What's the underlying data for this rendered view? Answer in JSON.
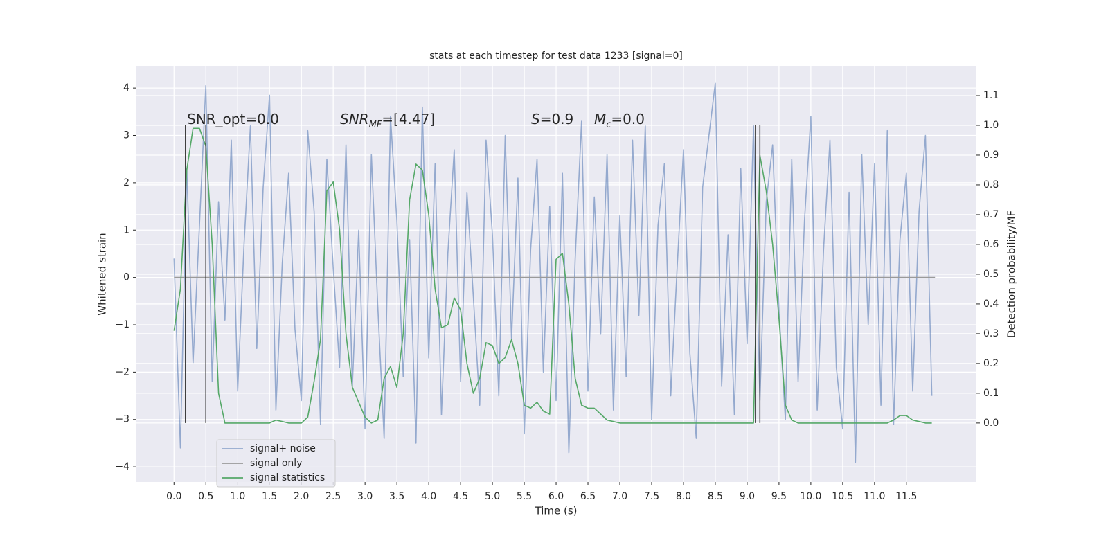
{
  "chart_data": {
    "type": "line",
    "title": "stats at each timestep for test data 1233 [signal=0]",
    "xlabel": "Time (s)",
    "ylabel": "Whitened strain",
    "y2label": "Detection probability/MF",
    "background": "#eaeaf2",
    "grid": true,
    "legend": "lower left",
    "xlim": [
      -0.59,
      12.6
    ],
    "ylim": [
      -4.32,
      4.47
    ],
    "y2lim": [
      -0.198,
      1.2
    ],
    "xticks": [
      {
        "value": 0,
        "label": "0.0"
      },
      0.5,
      {
        "value": 1,
        "label": "1.0"
      },
      1.5,
      {
        "value": 2,
        "label": "2.0"
      },
      2.5,
      {
        "value": 3,
        "label": "3.0"
      },
      3.5,
      {
        "value": 4,
        "label": "4.0"
      },
      4.5,
      {
        "value": 5,
        "label": "5.0"
      },
      5.5,
      {
        "value": 6,
        "label": "6.0"
      },
      6.5,
      {
        "value": 7,
        "label": "7.0"
      },
      7.5,
      {
        "value": 8,
        "label": "8.0"
      },
      8.5,
      {
        "value": 9,
        "label": "9.0"
      },
      9.5,
      {
        "value": 10,
        "label": "10.0"
      },
      10.5,
      {
        "value": 11,
        "label": "11.0"
      },
      11.5
    ],
    "yticks": [
      {
        "value": -4,
        "label": "−4"
      },
      {
        "value": -3,
        "label": "−3"
      },
      {
        "value": -2,
        "label": "−2"
      },
      {
        "value": -1,
        "label": "−1"
      },
      0,
      1,
      2,
      3,
      4
    ],
    "y2ticks": [
      {
        "value": 0,
        "label": "0.0"
      },
      0.1,
      0.2,
      0.3,
      0.4,
      0.5,
      0.6,
      0.7,
      0.8,
      0.9,
      {
        "value": 1,
        "label": "1.0"
      },
      1.1
    ],
    "x": [
      0,
      0.1,
      0.2,
      0.3,
      0.4,
      0.5,
      0.6,
      0.7,
      0.8,
      0.9,
      1,
      1.1,
      1.2,
      1.3,
      1.4,
      1.5,
      1.6,
      1.7,
      1.8,
      1.9,
      2,
      2.1,
      2.2,
      2.3,
      2.4,
      2.5,
      2.6,
      2.7,
      2.8,
      2.9,
      3,
      3.1,
      3.2,
      3.3,
      3.4,
      3.5,
      3.6,
      3.7,
      3.8,
      3.9,
      4,
      4.1,
      4.2,
      4.3,
      4.4,
      4.5,
      4.6,
      4.7,
      4.8,
      4.9,
      5,
      5.1,
      5.2,
      5.3,
      5.4,
      5.5,
      5.6,
      5.7,
      5.8,
      5.9,
      6,
      6.1,
      6.2,
      6.3,
      6.4,
      6.5,
      6.6,
      6.7,
      6.8,
      6.9,
      7,
      7.1,
      7.2,
      7.3,
      7.4,
      7.5,
      7.6,
      7.7,
      7.8,
      7.9,
      8,
      8.1,
      8.2,
      8.3,
      8.4,
      8.5,
      8.6,
      8.7,
      8.8,
      8.9,
      9,
      9.1,
      9.2,
      9.3,
      9.4,
      9.5,
      9.6,
      9.7,
      9.8,
      9.9,
      10,
      10.1,
      10.2,
      10.3,
      10.4,
      10.5,
      10.6,
      10.7,
      10.8,
      10.9,
      11,
      11.1,
      11.2,
      11.3,
      11.4,
      11.5,
      11.6,
      11.7,
      11.8,
      11.9
    ],
    "series": [
      {
        "name": "signal+ noise",
        "color": "#4c72b0",
        "alpha": 0.55,
        "values": [
          0.4,
          -3.6,
          2.3,
          -1.8,
          1.1,
          4.05,
          -2.2,
          1.6,
          -0.9,
          2.9,
          -2.4,
          0.7,
          3.2,
          -1.5,
          1.9,
          3.85,
          -2.8,
          0.3,
          2.2,
          -1.1,
          -2.6,
          3.1,
          1.4,
          -3.1,
          2.5,
          0.2,
          -1.9,
          2.8,
          -2.3,
          1.0,
          -3.2,
          2.6,
          -0.6,
          -3.4,
          3.4,
          1.2,
          -2.1,
          0.8,
          -3.5,
          3.6,
          -1.7,
          2.4,
          -2.9,
          0.5,
          2.7,
          -2.2,
          1.8,
          -0.4,
          -2.7,
          2.9,
          0.9,
          -2.5,
          3.0,
          -1.3,
          2.1,
          -3.3,
          0.6,
          2.5,
          -2.0,
          1.5,
          -2.6,
          2.2,
          -3.7,
          0.4,
          3.3,
          -2.4,
          1.7,
          -1.2,
          2.6,
          -2.8,
          1.3,
          -2.1,
          2.9,
          -0.8,
          3.2,
          -3.0,
          1.1,
          2.4,
          -2.5,
          0.2,
          2.7,
          -1.6,
          -3.4,
          1.9,
          3.0,
          4.1,
          -2.3,
          0.9,
          -2.9,
          2.3,
          -1.4,
          3.2,
          -2.6,
          1.6,
          2.8,
          -0.7,
          -3.0,
          2.5,
          -2.2,
          1.2,
          3.4,
          -2.8,
          0.6,
          2.9,
          -1.9,
          -3.2,
          1.8,
          -3.9,
          2.6,
          -1.0,
          2.4,
          -2.7,
          3.1,
          -3.1,
          0.8,
          2.2,
          -2.4,
          1.4,
          3.0,
          -2.5
        ]
      },
      {
        "name": "signal only",
        "color": "#9a9a9a",
        "alpha": 1,
        "x": [
          0,
          11.95
        ],
        "values": [
          0,
          0
        ]
      },
      {
        "name": "signal statistics",
        "color": "#55a868",
        "alpha": 1,
        "axis": "y2",
        "values": [
          0.31,
          0.45,
          0.85,
          0.99,
          0.99,
          0.93,
          0.6,
          0.1,
          0,
          0,
          0,
          0,
          0,
          0,
          0,
          0,
          0.01,
          0.005,
          0,
          0,
          0,
          0.02,
          0.14,
          0.28,
          0.78,
          0.81,
          0.65,
          0.3,
          0.12,
          0.07,
          0.02,
          0,
          0.01,
          0.15,
          0.19,
          0.12,
          0.3,
          0.75,
          0.87,
          0.85,
          0.7,
          0.45,
          0.32,
          0.33,
          0.42,
          0.38,
          0.2,
          0.1,
          0.15,
          0.27,
          0.26,
          0.2,
          0.22,
          0.28,
          0.2,
          0.06,
          0.05,
          0.07,
          0.04,
          0.03,
          0.55,
          0.57,
          0.4,
          0.15,
          0.06,
          0.05,
          0.05,
          0.03,
          0.01,
          0.005,
          0,
          0,
          0,
          0,
          0,
          0,
          0,
          0,
          0,
          0,
          0,
          0,
          0,
          0,
          0,
          0,
          0,
          0,
          0,
          0,
          0,
          0,
          0.9,
          0.78,
          0.6,
          0.35,
          0.06,
          0.01,
          0,
          0,
          0,
          0,
          0,
          0,
          0,
          0,
          0,
          0,
          0,
          0,
          0,
          0,
          0,
          0.01,
          0.025,
          0.025,
          0.01,
          0.005,
          0,
          0
        ]
      }
    ],
    "vlines": {
      "x": [
        0.18,
        0.5,
        9.13,
        9.2
      ],
      "ymin": 0,
      "ymax": 1,
      "axis": "y2",
      "color": "#333333"
    },
    "annotations": [
      {
        "parts": [
          {
            "text": "SNR_opt=0.0"
          }
        ]
      },
      {
        "parts": [
          {
            "text": "SNR",
            "italic": true
          },
          {
            "text": "MF",
            "italic": true,
            "sub": true
          },
          {
            "text": "=[4.47]"
          }
        ]
      },
      {
        "parts": [
          {
            "text": "S",
            "italic": true
          },
          {
            "text": "=0.9"
          }
        ]
      },
      {
        "parts": [
          {
            "text": "M",
            "italic": true
          },
          {
            "text": "c",
            "italic": true,
            "sub": true
          },
          {
            "text": "=0.0"
          }
        ]
      }
    ]
  }
}
